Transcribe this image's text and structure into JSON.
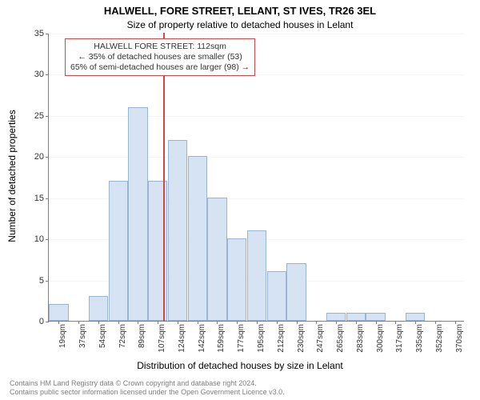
{
  "title_line1": "HALWELL, FORE STREET, LELANT, ST IVES, TR26 3EL",
  "title_line2": "Size of property relative to detached houses in Lelant",
  "ylabel": "Number of detached properties",
  "xlabel": "Distribution of detached houses by size in Lelant",
  "chart": {
    "type": "histogram",
    "ylim": [
      0,
      35
    ],
    "ytick_step": 5,
    "bar_fill": "#d6e3f3",
    "bar_border": "#9ab4d6",
    "ref_color": "#d94545",
    "ref_value": 112,
    "background": "#ffffff",
    "grid_color": "rgba(0,0,0,0.04)",
    "label_fontsize": 12,
    "tick_fontsize": 11,
    "bins": [
      {
        "label": "19sqm",
        "value": 2
      },
      {
        "label": "37sqm",
        "value": 0
      },
      {
        "label": "54sqm",
        "value": 3
      },
      {
        "label": "72sqm",
        "value": 17
      },
      {
        "label": "89sqm",
        "value": 26
      },
      {
        "label": "107sqm",
        "value": 17
      },
      {
        "label": "124sqm",
        "value": 22
      },
      {
        "label": "142sqm",
        "value": 20
      },
      {
        "label": "159sqm",
        "value": 15
      },
      {
        "label": "177sqm",
        "value": 10
      },
      {
        "label": "195sqm",
        "value": 11
      },
      {
        "label": "212sqm",
        "value": 6
      },
      {
        "label": "230sqm",
        "value": 7
      },
      {
        "label": "247sqm",
        "value": 0
      },
      {
        "label": "265sqm",
        "value": 1
      },
      {
        "label": "283sqm",
        "value": 1
      },
      {
        "label": "300sqm",
        "value": 1
      },
      {
        "label": "317sqm",
        "value": 0
      },
      {
        "label": "335sqm",
        "value": 1
      },
      {
        "label": "352sqm",
        "value": 0
      },
      {
        "label": "370sqm",
        "value": 0
      }
    ]
  },
  "annotation": {
    "line1": "HALWELL FORE STREET: 112sqm",
    "line2": "← 35% of detached houses are smaller (53)",
    "line3": "65% of semi-detached houses are larger (98) →"
  },
  "footer_line1": "Contains HM Land Registry data © Crown copyright and database right 2024.",
  "footer_line2": "Contains public sector information licensed under the Open Government Licence v3.0."
}
